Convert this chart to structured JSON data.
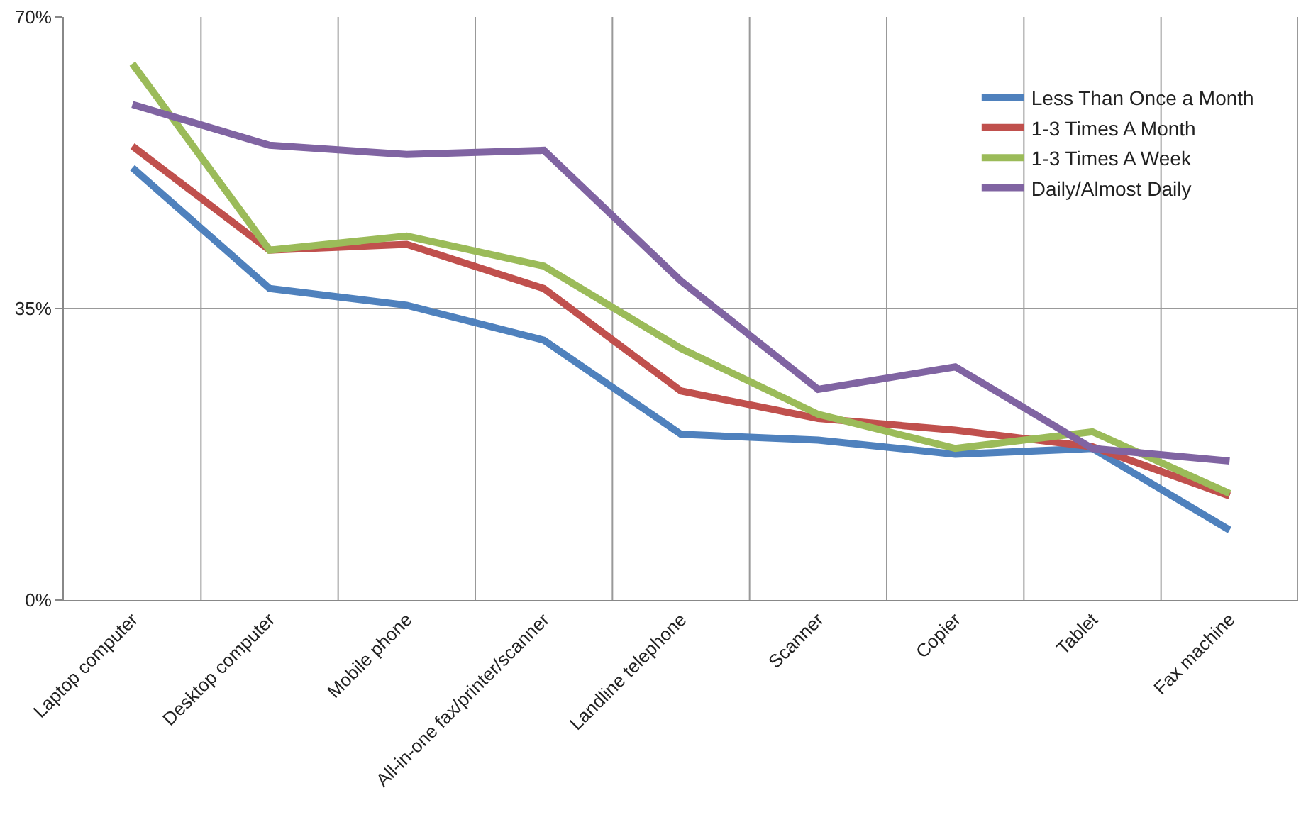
{
  "chart_data": {
    "type": "line",
    "categories": [
      "Laptop computer",
      "Desktop computer",
      "Mobile phone",
      "All-in-one fax/printer/scanner",
      "Landline telephone",
      "Scanner",
      "Copier",
      "Tablet",
      "Fax machine"
    ],
    "series": [
      {
        "name": "Less Than Once a Month",
        "color": "#4f81bd",
        "values": [
          51.9,
          37.4,
          35.4,
          31.2,
          19.9,
          19.2,
          17.5,
          18.2,
          8.4
        ]
      },
      {
        "name": "1-3 Times A Month",
        "color": "#c0504d",
        "values": [
          54.5,
          42,
          42.7,
          37.4,
          25.1,
          21.8,
          20.4,
          18.4,
          12.5
        ]
      },
      {
        "name": "1-3 Times A Week",
        "color": "#9bbb59",
        "values": [
          64.4,
          42,
          43.7,
          40.1,
          30.2,
          22.3,
          18.2,
          20.2,
          12.8
        ]
      },
      {
        "name": "Daily/Almost Daily",
        "color": "#8064a2",
        "values": [
          59.5,
          54.6,
          53.5,
          54,
          38.3,
          25.3,
          28,
          18.2,
          16.7
        ]
      }
    ],
    "ylim": [
      0,
      70
    ],
    "yticks": [
      {
        "value": 0,
        "label": "0%"
      },
      {
        "value": 35,
        "label": "35%"
      },
      {
        "value": 70,
        "label": "70%"
      }
    ],
    "grid": true,
    "legend": "top right",
    "marker": "none",
    "line_style": "solid"
  }
}
